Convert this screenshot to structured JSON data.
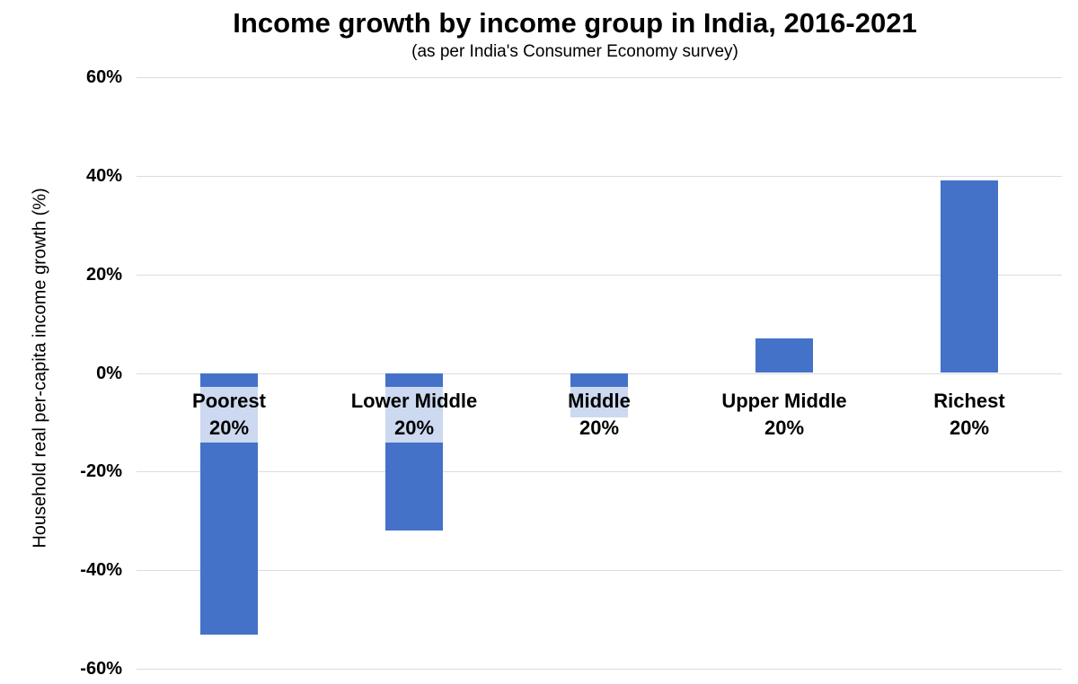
{
  "header": {
    "title": "Income growth by income group in India, 2016-2021",
    "subtitle": "(as per India's Consumer Economy survey)"
  },
  "chart_data": {
    "type": "bar",
    "title": "Income growth by income group in India, 2016-2021",
    "subtitle": "(as per India's Consumer Economy survey)",
    "categories": [
      "Poorest",
      "Lower Middle",
      "Middle",
      "Upper Middle",
      "Richest"
    ],
    "category_suffix": "20%",
    "x_tick_labels": [
      "Poorest 20%",
      "Lower Middle 20%",
      "Middle 20%",
      "Upper Middle 20%",
      "Richest 20%"
    ],
    "values": [
      -53,
      -32,
      -9,
      7,
      39
    ],
    "unit": "%",
    "xlabel": "",
    "ylabel": "Household real per-capita income growth (%)",
    "ylim": [
      -60,
      60
    ],
    "yticks": [
      {
        "value": 60,
        "label": "60%"
      },
      {
        "value": 40,
        "label": "40%"
      },
      {
        "value": 20,
        "label": "20%"
      },
      {
        "value": 0,
        "label": "0%"
      },
      {
        "value": -20,
        "label": "-20%"
      },
      {
        "value": -40,
        "label": "-40%"
      },
      {
        "value": -60,
        "label": "-60%"
      }
    ],
    "grid": true,
    "legend": false,
    "colors": {
      "bar": "#4472c8",
      "gridline": "#dcdcdc",
      "text": "#000000",
      "label_background": "rgba(255,255,255,0.73)"
    }
  }
}
